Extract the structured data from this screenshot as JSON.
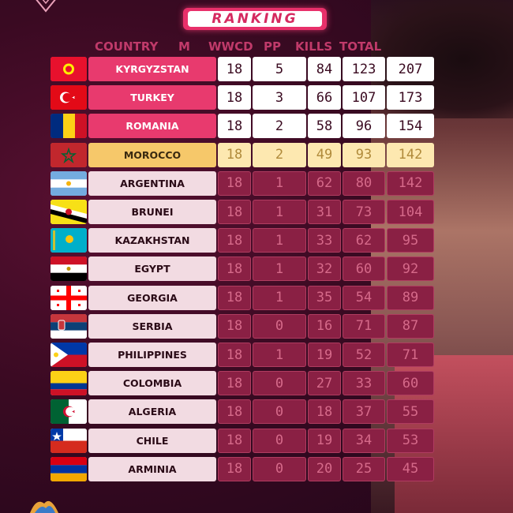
{
  "title": "RANKING",
  "headers": {
    "country": "COUNTRY",
    "m": "M",
    "wwcd": "WWCD",
    "pp": "PP",
    "kills": "KILLS",
    "total": "TOTAL"
  },
  "rows": [
    {
      "country": "KYRGYZSTAN",
      "m": "18",
      "wwcd": "5",
      "pp": "84",
      "kills": "123",
      "total": "207",
      "style": "top",
      "flag": "kyrgyzstan-flag"
    },
    {
      "country": "TURKEY",
      "m": "18",
      "wwcd": "3",
      "pp": "66",
      "kills": "107",
      "total": "173",
      "style": "top",
      "flag": "turkey-flag"
    },
    {
      "country": "ROMANIA",
      "m": "18",
      "wwcd": "2",
      "pp": "58",
      "kills": "96",
      "total": "154",
      "style": "top",
      "flag": "romania-flag"
    },
    {
      "country": "MOROCCO",
      "m": "18",
      "wwcd": "2",
      "pp": "49",
      "kills": "93",
      "total": "142",
      "style": "gold",
      "flag": "morocco-flag"
    },
    {
      "country": "ARGENTINA",
      "m": "18",
      "wwcd": "1",
      "pp": "62",
      "kills": "80",
      "total": "142",
      "style": "norm",
      "flag": "argentina-flag"
    },
    {
      "country": "BRUNEI",
      "m": "18",
      "wwcd": "1",
      "pp": "31",
      "kills": "73",
      "total": "104",
      "style": "norm",
      "flag": "brunei-flag"
    },
    {
      "country": "KAZAKHSTAN",
      "m": "18",
      "wwcd": "1",
      "pp": "33",
      "kills": "62",
      "total": "95",
      "style": "norm",
      "flag": "kazakhstan-flag"
    },
    {
      "country": "EGYPT",
      "m": "18",
      "wwcd": "1",
      "pp": "32",
      "kills": "60",
      "total": "92",
      "style": "norm",
      "flag": "egypt-flag"
    },
    {
      "country": "GEORGIA",
      "m": "18",
      "wwcd": "1",
      "pp": "35",
      "kills": "54",
      "total": "89",
      "style": "norm",
      "flag": "georgia-flag"
    },
    {
      "country": "SERBIA",
      "m": "18",
      "wwcd": "0",
      "pp": "16",
      "kills": "71",
      "total": "87",
      "style": "norm",
      "flag": "serbia-flag"
    },
    {
      "country": "PHILIPPINES",
      "m": "18",
      "wwcd": "1",
      "pp": "19",
      "kills": "52",
      "total": "71",
      "style": "norm",
      "flag": "philippines-flag"
    },
    {
      "country": "COLOMBIA",
      "m": "18",
      "wwcd": "0",
      "pp": "27",
      "kills": "33",
      "total": "60",
      "style": "norm",
      "flag": "colombia-flag"
    },
    {
      "country": "ALGERIA",
      "m": "18",
      "wwcd": "0",
      "pp": "18",
      "kills": "37",
      "total": "55",
      "style": "norm",
      "flag": "algeria-flag"
    },
    {
      "country": "CHILE",
      "m": "18",
      "wwcd": "0",
      "pp": "19",
      "kills": "34",
      "total": "53",
      "style": "norm",
      "flag": "chile-flag"
    },
    {
      "country": "ARMINIA",
      "m": "18",
      "wwcd": "0",
      "pp": "20",
      "kills": "25",
      "total": "45",
      "style": "norm",
      "flag": "armenia-flag"
    }
  ],
  "colors": {
    "accent": "#e83a6e",
    "gold": "#f6c86a",
    "row_dark": "#8a2044",
    "bg": "#3a0a22"
  }
}
